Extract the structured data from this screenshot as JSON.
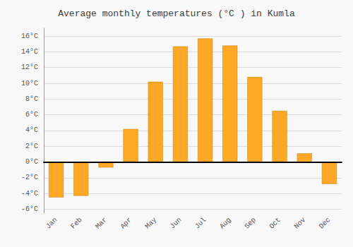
{
  "chart_data": {
    "type": "bar",
    "title": "Average monthly temperatures (°C ) in Kumla",
    "categories": [
      "Jan",
      "Feb",
      "Mar",
      "Apr",
      "May",
      "Jun",
      "Jul",
      "Aug",
      "Sep",
      "Oct",
      "Nov",
      "Dec"
    ],
    "values": [
      -4.5,
      -4.3,
      -0.7,
      4.2,
      10.2,
      14.7,
      15.7,
      14.8,
      10.8,
      6.5,
      1.1,
      -2.8
    ],
    "color": "#FFA726",
    "ylim": [
      -6.5,
      17
    ],
    "yticks": [
      {
        "value": -6,
        "label": "-6°C"
      },
      {
        "value": -4,
        "label": "-4°C"
      },
      {
        "value": -2,
        "label": "-2°C"
      },
      {
        "value": 0,
        "label": "0°C"
      },
      {
        "value": 2,
        "label": "2°C"
      },
      {
        "value": 4,
        "label": "4°C"
      },
      {
        "value": 6,
        "label": "6°C"
      },
      {
        "value": 8,
        "label": "8°C"
      },
      {
        "value": 10,
        "label": "10°C"
      },
      {
        "value": 12,
        "label": "12°C"
      },
      {
        "value": 14,
        "label": "14°C"
      },
      {
        "value": 16,
        "label": "16°C"
      }
    ],
    "grid": true
  }
}
